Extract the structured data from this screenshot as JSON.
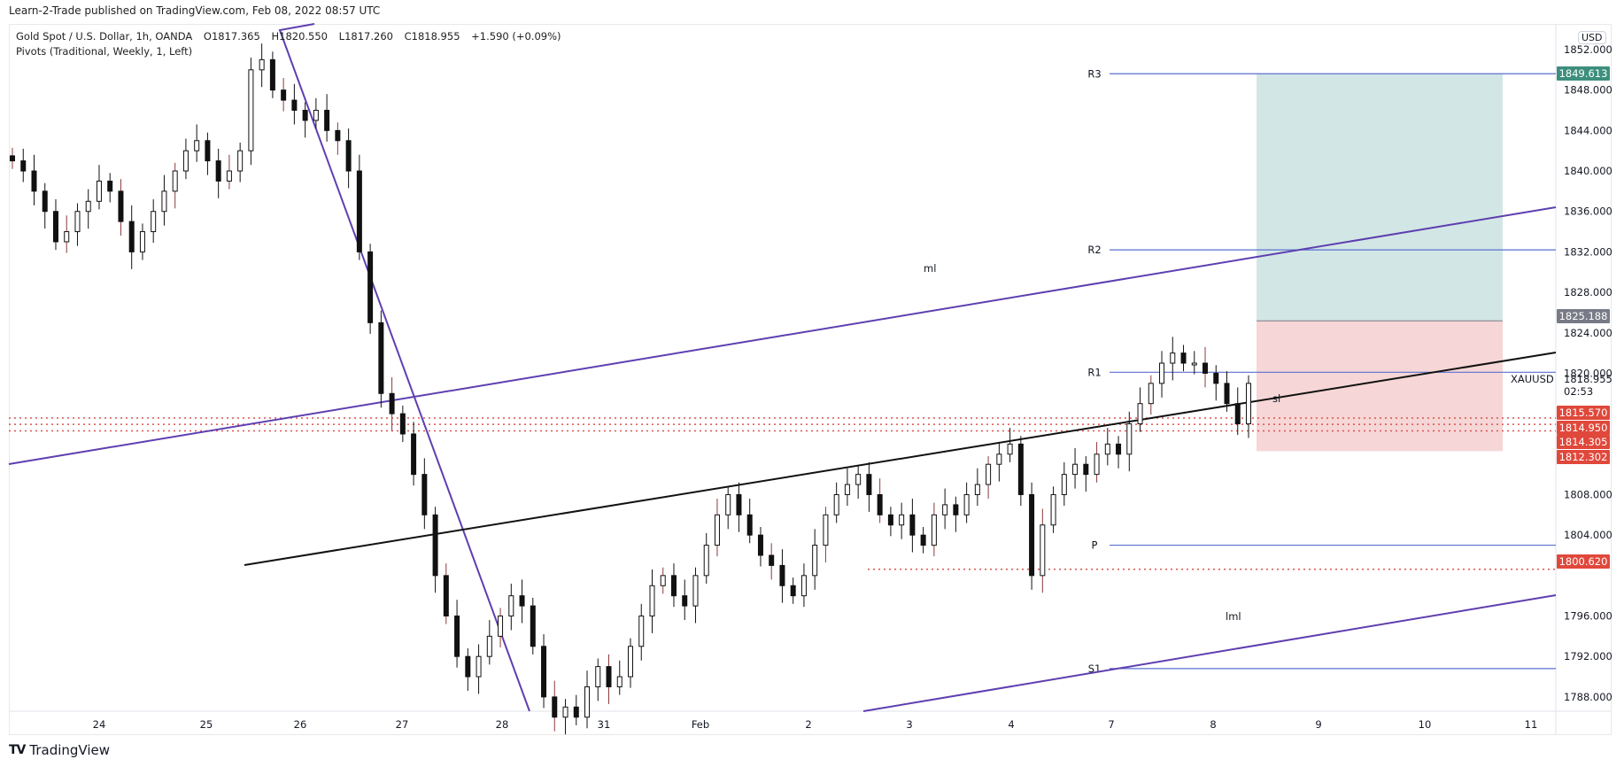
{
  "header": {
    "published": "Learn-2-Trade published on TradingView.com, Feb 08, 2022 08:57 UTC",
    "symbol": "Gold Spot / U.S. Dollar, 1h, OANDA",
    "open": "O1817.365",
    "high": "H1820.550",
    "low": "L1817.260",
    "close": "C1818.955",
    "change": "+1.590 (+0.09%)",
    "indicator": "Pivots (Traditional, Weekly, 1, Left)"
  },
  "footer": {
    "logo_text": "TradingView",
    "logo_icon": "tradingview-logo-icon"
  },
  "price_axis": {
    "currency": "USD",
    "ticks": [
      "1852.000",
      "1848.000",
      "1844.000",
      "1840.000",
      "1836.000",
      "1832.000",
      "1828.000",
      "1824.000",
      "1820.000",
      "1808.000",
      "1804.000",
      "1796.000",
      "1792.000",
      "1788.000"
    ],
    "symbol_label": "XAUUSD",
    "last_price": "1818.955",
    "countdown": "02:53"
  },
  "chart_data": {
    "type": "candlestick",
    "title": "Gold Spot / U.S. Dollar, 1h, OANDA",
    "xlabel": "",
    "ylabel": "USD",
    "ylim": [
      1786,
      1853
    ],
    "x_tick_labels": [
      "24",
      "25",
      "26",
      "27",
      "28",
      "31",
      "Feb",
      "2",
      "3",
      "4",
      "7",
      "8",
      "9",
      "10",
      "11"
    ],
    "pivots": [
      {
        "name": "R3",
        "value": 1849.613
      },
      {
        "name": "R2",
        "value": 1832.2
      },
      {
        "name": "R1",
        "value": 1820.1
      },
      {
        "name": "P",
        "value": 1803.0
      },
      {
        "name": "S1",
        "value": 1790.8
      }
    ],
    "price_tags": [
      {
        "value": "1849.613",
        "color": "#3d8f7d"
      },
      {
        "value": "1825.188",
        "color": "#787b86"
      },
      {
        "value": "1815.570",
        "color": "#e0483b"
      },
      {
        "value": "1814.950",
        "color": "#e0483b"
      },
      {
        "value": "1814.305",
        "color": "#e0483b"
      },
      {
        "value": "1812.302",
        "color": "#e0483b"
      },
      {
        "value": "1800.620",
        "color": "#e0483b"
      }
    ],
    "horizontal_dotted_levels": [
      1815.57,
      1814.95,
      1814.305,
      1800.62
    ],
    "annotations": [
      {
        "text": "ml",
        "type": "label"
      },
      {
        "text": "sl",
        "type": "label"
      },
      {
        "text": "lml",
        "type": "label"
      }
    ],
    "position_tool": {
      "target": 1849.613,
      "entry": 1825.188,
      "stop": 1812.302
    },
    "ohlc_last": {
      "open": 1817.365,
      "high": 1820.55,
      "low": 1817.26,
      "close": 1818.955
    },
    "approx_closes": [
      1841,
      1840,
      1838,
      1836,
      1833,
      1834,
      1836,
      1837,
      1839,
      1838,
      1835,
      1832,
      1834,
      1836,
      1838,
      1840,
      1842,
      1843,
      1841,
      1839,
      1840,
      1842,
      1850,
      1851,
      1848,
      1847,
      1846,
      1845,
      1846,
      1844,
      1843,
      1840,
      1832,
      1825,
      1818,
      1816,
      1814,
      1810,
      1806,
      1800,
      1796,
      1792,
      1790,
      1792,
      1794,
      1796,
      1798,
      1797,
      1793,
      1788,
      1786,
      1787,
      1786,
      1789,
      1791,
      1789,
      1790,
      1793,
      1796,
      1799,
      1800,
      1798,
      1797,
      1800,
      1803,
      1806,
      1808,
      1806,
      1804,
      1802,
      1801,
      1799,
      1798,
      1800,
      1803,
      1806,
      1808,
      1809,
      1810,
      1808,
      1806,
      1805,
      1806,
      1804,
      1803,
      1806,
      1807,
      1806,
      1808,
      1809,
      1811,
      1812,
      1813,
      1808,
      1800,
      1805,
      1808,
      1810,
      1811,
      1810,
      1812,
      1813,
      1812,
      1815,
      1817,
      1819,
      1821,
      1822,
      1821,
      1821,
      1820,
      1819,
      1817,
      1815,
      1819
    ]
  }
}
